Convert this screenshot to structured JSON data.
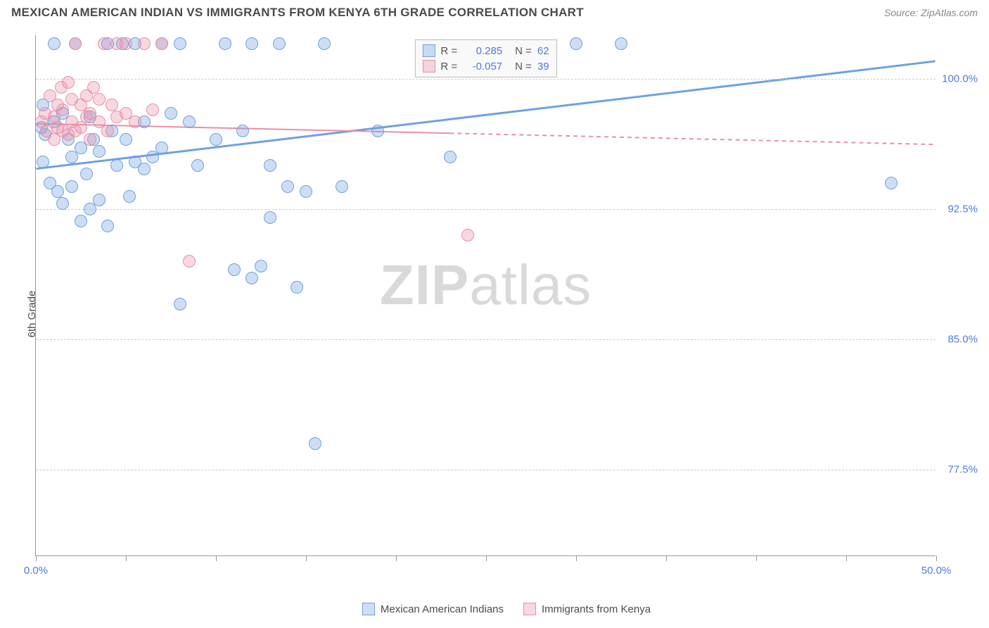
{
  "header": {
    "title": "MEXICAN AMERICAN INDIAN VS IMMIGRANTS FROM KENYA 6TH GRADE CORRELATION CHART",
    "source": "Source: ZipAtlas.com"
  },
  "y_axis_label": "6th Grade",
  "watermark": {
    "bold": "ZIP",
    "light": "atlas"
  },
  "chart": {
    "type": "scatter",
    "xlim": [
      0,
      50
    ],
    "ylim": [
      72.5,
      102.5
    ],
    "x_ticks": [
      0,
      5,
      10,
      15,
      20,
      25,
      30,
      35,
      40,
      45,
      50
    ],
    "x_tick_labels": {
      "0": "0.0%",
      "50": "50.0%"
    },
    "y_gridlines": [
      77.5,
      85.0,
      92.5,
      100.0
    ],
    "y_tick_labels": [
      "77.5%",
      "85.0%",
      "92.5%",
      "100.0%"
    ],
    "background_color": "#ffffff",
    "grid_color": "#cccccc",
    "axis_color": "#999999",
    "tick_label_color": "#4f7bd9",
    "series": [
      {
        "name": "Mexican American Indians",
        "color": "#6fa1e0",
        "fill": "rgba(111,161,224,0.35)",
        "stroke": "#6fa1e0",
        "marker_radius": 9,
        "trend": {
          "x1": 0,
          "y1": 94.8,
          "x2": 50,
          "y2": 101.0,
          "dash_from_x": null,
          "width": 3
        },
        "points": [
          [
            0.3,
            97.2
          ],
          [
            0.4,
            95.2
          ],
          [
            0.4,
            98.5
          ],
          [
            0.5,
            96.8
          ],
          [
            0.8,
            94.0
          ],
          [
            1.0,
            97.5
          ],
          [
            1.0,
            102.0
          ],
          [
            1.2,
            93.5
          ],
          [
            1.5,
            92.8
          ],
          [
            1.5,
            98.0
          ],
          [
            1.8,
            96.5
          ],
          [
            2.0,
            95.5
          ],
          [
            2.0,
            93.8
          ],
          [
            2.2,
            102.0
          ],
          [
            2.5,
            91.8
          ],
          [
            2.5,
            96.0
          ],
          [
            2.8,
            94.5
          ],
          [
            3.0,
            92.5
          ],
          [
            3.0,
            97.8
          ],
          [
            3.5,
            95.8
          ],
          [
            3.5,
            93.0
          ],
          [
            4.0,
            102.0
          ],
          [
            4.0,
            91.5
          ],
          [
            4.2,
            97.0
          ],
          [
            4.5,
            95.0
          ],
          [
            4.8,
            102.0
          ],
          [
            5.0,
            96.5
          ],
          [
            5.2,
            93.2
          ],
          [
            5.5,
            95.2
          ],
          [
            5.5,
            102.0
          ],
          [
            6.0,
            97.5
          ],
          [
            6.0,
            94.8
          ],
          [
            6.5,
            95.5
          ],
          [
            7.0,
            102.0
          ],
          [
            7.0,
            96.0
          ],
          [
            7.5,
            98.0
          ],
          [
            8.0,
            102.0
          ],
          [
            8.0,
            87.0
          ],
          [
            8.5,
            97.5
          ],
          [
            9.0,
            95.0
          ],
          [
            10.0,
            96.5
          ],
          [
            10.5,
            102.0
          ],
          [
            11.0,
            89.0
          ],
          [
            11.5,
            97.0
          ],
          [
            12.0,
            88.5
          ],
          [
            12.0,
            102.0
          ],
          [
            12.5,
            89.2
          ],
          [
            13.0,
            95.0
          ],
          [
            13.5,
            102.0
          ],
          [
            14.0,
            93.8
          ],
          [
            14.5,
            88.0
          ],
          [
            15.0,
            93.5
          ],
          [
            15.5,
            79.0
          ],
          [
            16.0,
            102.0
          ],
          [
            17.0,
            93.8
          ],
          [
            19.0,
            97.0
          ],
          [
            23.0,
            95.5
          ],
          [
            30.0,
            102.0
          ],
          [
            32.5,
            102.0
          ],
          [
            47.5,
            94.0
          ],
          [
            13.0,
            92.0
          ],
          [
            3.2,
            96.5
          ]
        ]
      },
      {
        "name": "Immigrants from Kenya",
        "color": "#e890a8",
        "fill": "rgba(232,144,168,0.35)",
        "stroke": "#e890a8",
        "marker_radius": 9,
        "trend": {
          "x1": 0,
          "y1": 97.4,
          "x2": 50,
          "y2": 96.2,
          "dash_from_x": 23,
          "width": 2
        },
        "points": [
          [
            0.3,
            97.5
          ],
          [
            0.5,
            98.0
          ],
          [
            0.6,
            97.0
          ],
          [
            0.8,
            99.0
          ],
          [
            1.0,
            97.8
          ],
          [
            1.0,
            96.5
          ],
          [
            1.2,
            98.5
          ],
          [
            1.2,
            97.2
          ],
          [
            1.4,
            99.5
          ],
          [
            1.5,
            97.0
          ],
          [
            1.5,
            98.2
          ],
          [
            1.8,
            96.8
          ],
          [
            1.8,
            99.8
          ],
          [
            2.0,
            97.5
          ],
          [
            2.0,
            98.8
          ],
          [
            2.2,
            97.0
          ],
          [
            2.2,
            102.0
          ],
          [
            2.5,
            98.5
          ],
          [
            2.5,
            97.2
          ],
          [
            2.8,
            99.0
          ],
          [
            2.8,
            97.8
          ],
          [
            3.0,
            98.0
          ],
          [
            3.0,
            96.5
          ],
          [
            3.2,
            99.5
          ],
          [
            3.5,
            97.5
          ],
          [
            3.5,
            98.8
          ],
          [
            3.8,
            102.0
          ],
          [
            4.0,
            97.0
          ],
          [
            4.2,
            98.5
          ],
          [
            4.5,
            97.8
          ],
          [
            4.5,
            102.0
          ],
          [
            5.0,
            98.0
          ],
          [
            5.0,
            102.0
          ],
          [
            5.5,
            97.5
          ],
          [
            6.0,
            102.0
          ],
          [
            6.5,
            98.2
          ],
          [
            7.0,
            102.0
          ],
          [
            8.5,
            89.5
          ],
          [
            24.0,
            91.0
          ]
        ]
      }
    ]
  },
  "legend_top": {
    "rows": [
      {
        "swatch_fill": "rgba(111,161,224,0.35)",
        "swatch_border": "#6fa1e0",
        "r_label": "R =",
        "r_value": "0.285",
        "n_label": "N =",
        "n_value": "62"
      },
      {
        "swatch_fill": "rgba(232,144,168,0.35)",
        "swatch_border": "#e890a8",
        "r_label": "R =",
        "r_value": "-0.057",
        "n_label": "N =",
        "n_value": "39"
      }
    ],
    "label_color": "#555555",
    "value_color": "#4f7bd9"
  },
  "legend_bottom": {
    "items": [
      {
        "swatch_fill": "rgba(111,161,224,0.35)",
        "swatch_border": "#6fa1e0",
        "label": "Mexican American Indians"
      },
      {
        "swatch_fill": "rgba(232,144,168,0.35)",
        "swatch_border": "#e890a8",
        "label": "Immigrants from Kenya"
      }
    ]
  }
}
